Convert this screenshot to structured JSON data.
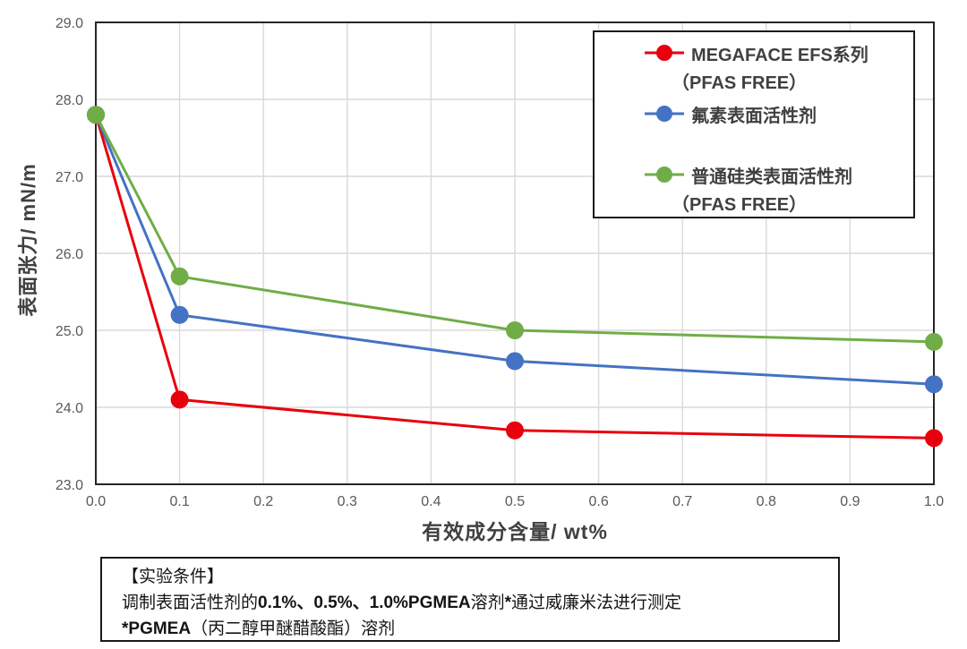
{
  "chart_data": {
    "type": "line",
    "title": "",
    "x": [
      0.0,
      0.1,
      0.5,
      1.0
    ],
    "series": [
      {
        "name": "MEGAFACE EFS系列（PFAS FREE）",
        "color": "#e8000d",
        "values": [
          27.8,
          24.1,
          23.7,
          23.6
        ]
      },
      {
        "name": "氟素表面活性剂",
        "color": "#4472c4",
        "values": [
          27.8,
          25.2,
          24.6,
          24.3
        ]
      },
      {
        "name": "普通硅类表面活性剂（PFAS FREE）",
        "color": "#70ad47",
        "values": [
          27.8,
          25.7,
          25.0,
          24.85
        ]
      }
    ],
    "xlabel": "有效成分含量/ wt%",
    "ylabel": "表面张力/ mN/m",
    "xlim": [
      0.0,
      1.0
    ],
    "ylim": [
      23.0,
      29.0
    ],
    "x_ticks": [
      "0.0",
      "0.1",
      "0.2",
      "0.3",
      "0.4",
      "0.5",
      "0.6",
      "0.7",
      "0.8",
      "0.9",
      "1.0"
    ],
    "y_ticks": [
      "23.0",
      "24.0",
      "25.0",
      "26.0",
      "27.0",
      "28.0",
      "29.0"
    ],
    "grid": true,
    "legend_position": "inside-top-right",
    "colors": {
      "grid": "#d9d9d9",
      "border": "#262626",
      "tick_text": "#595959",
      "axis_title_text": "#404040"
    }
  },
  "legend": {
    "entries": [
      {
        "line1": "MEGAFACE EFS系列",
        "line2": "（PFAS FREE）",
        "color": "#e8000d"
      },
      {
        "line1": "氟素表面活性剂",
        "line2": "",
        "color": "#4472c4"
      },
      {
        "line1": "普通硅类表面活性剂",
        "line2": "（PFAS FREE）",
        "color": "#70ad47"
      }
    ]
  },
  "note": {
    "title": "【实验条件】",
    "line2_seg1": "调制表面活性剂的",
    "line2_seg2": "0.1%、0.5%、1.0%PGMEA",
    "line2_seg3": "溶剂",
    "line2_seg4": "*",
    "line2_seg5": "通过威廉米法进行测定",
    "line3_seg1": "*PGMEA",
    "line3_seg2": "（丙二醇甲醚醋酸酯）溶剂"
  }
}
